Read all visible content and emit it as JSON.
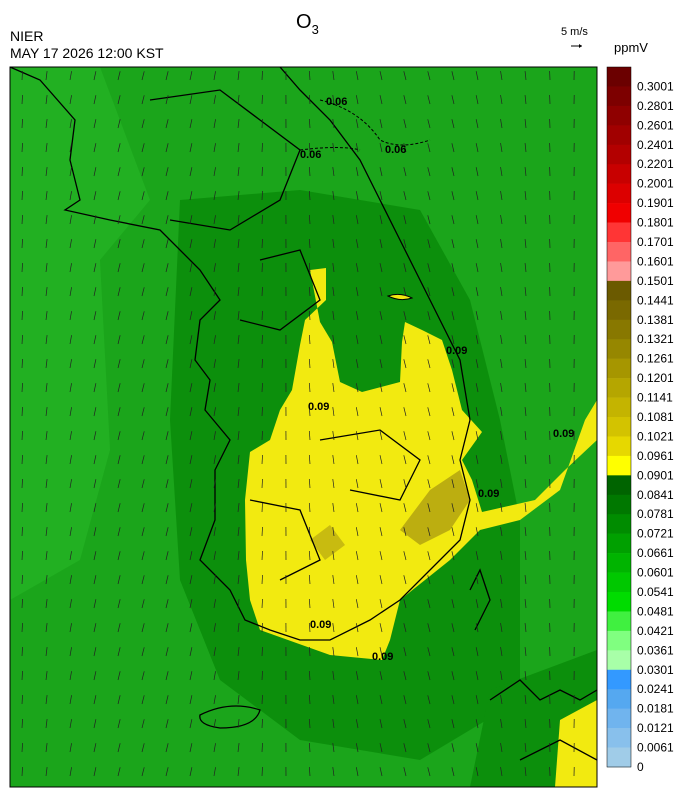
{
  "header": {
    "title": "O",
    "title_subscript": "3",
    "agency": "NIER",
    "datetime": "MAY 17 2026 12:00 KST"
  },
  "wind_reference": {
    "label": "5 m/s"
  },
  "colorbar": {
    "unit": "ppmV",
    "labels": [
      "0.3001",
      "0.2801",
      "0.2601",
      "0.2401",
      "0.2201",
      "0.2001",
      "0.1901",
      "0.1801",
      "0.1701",
      "0.1601",
      "0.1501",
      "0.1441",
      "0.1381",
      "0.1321",
      "0.1261",
      "0.1201",
      "0.1141",
      "0.1081",
      "0.1021",
      "0.0961",
      "0.0901",
      "0.0841",
      "0.0781",
      "0.0721",
      "0.0661",
      "0.0601",
      "0.0541",
      "0.0481",
      "0.0421",
      "0.0361",
      "0.0301",
      "0.0241",
      "0.0181",
      "0.0121",
      "0.0061",
      "0"
    ],
    "colors": [
      "#6b0000",
      "#7d0000",
      "#8f0000",
      "#a10000",
      "#b30000",
      "#c80000",
      "#dc0000",
      "#f00000",
      "#ff3535",
      "#ff6565",
      "#ff9a9a",
      "#6b5a00",
      "#7a6900",
      "#887800",
      "#968700",
      "#a69600",
      "#b5a600",
      "#c4b400",
      "#d3c300",
      "#e6d800",
      "#ffff00",
      "#006400",
      "#007800",
      "#008c00",
      "#00a000",
      "#00b400",
      "#00c800",
      "#00dc00",
      "#40f040",
      "#80ff80",
      "#a8ffa8",
      "#3399ff",
      "#55a8f0",
      "#70b4ee",
      "#88c0ec",
      "#a0cce8"
    ]
  },
  "contour_labels": [
    "0.06",
    "0.06",
    "0.06",
    "0.09",
    "0.09",
    "0.09",
    "0.09",
    "0.09",
    "0.09"
  ]
}
